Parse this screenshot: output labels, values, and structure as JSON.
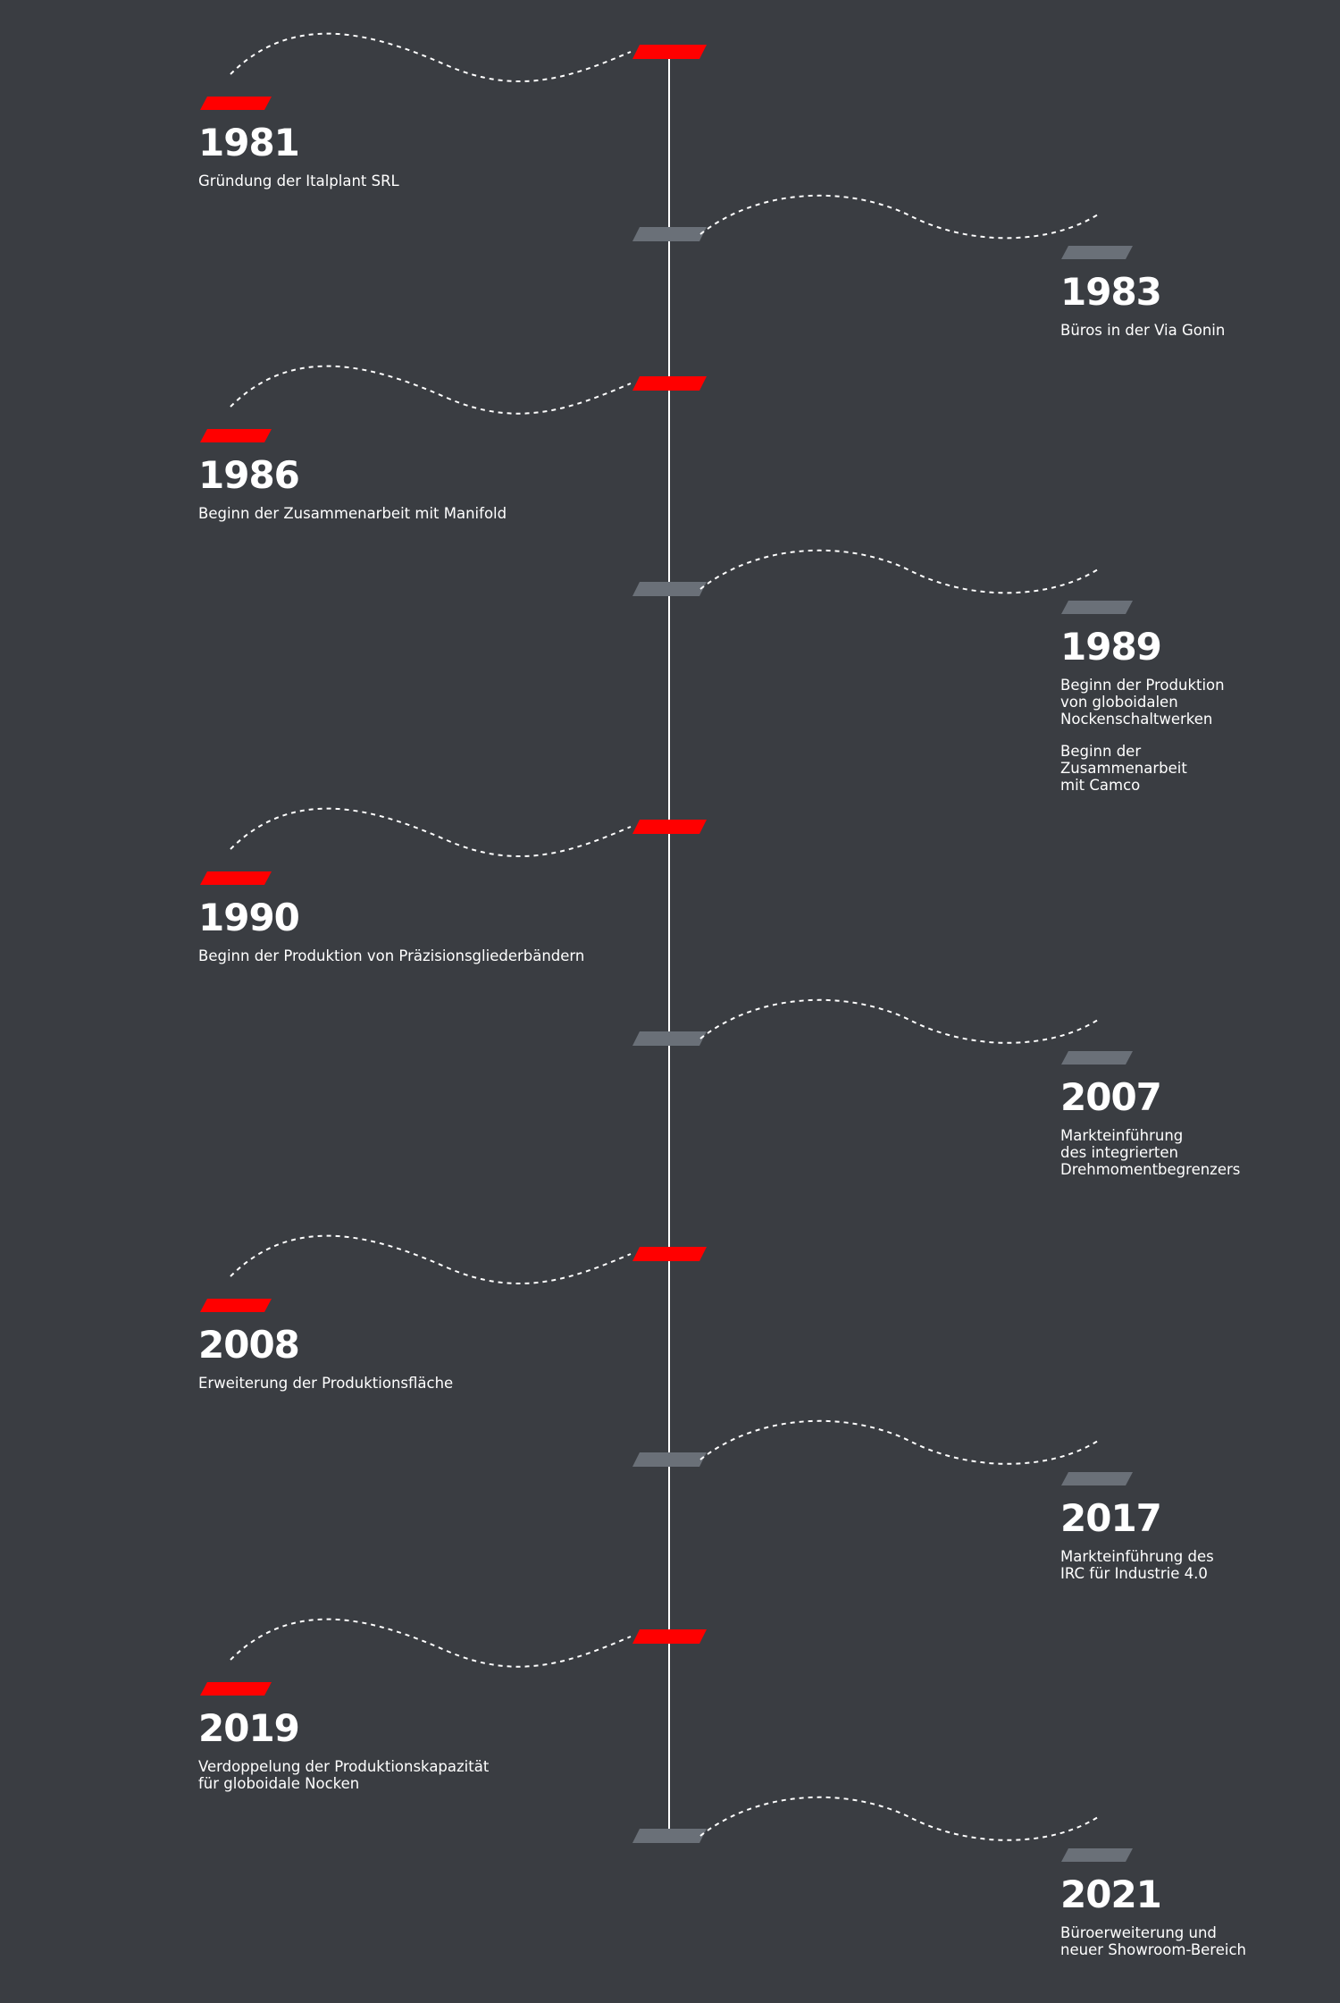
{
  "colors": {
    "background": "#3a3d42",
    "accent": "#ff0000",
    "muted_tag": "#6a7078",
    "line": "#ffffff",
    "text": "#ffffff"
  },
  "timeline": [
    {
      "year": "1981",
      "side": "left",
      "tag_color": "accent",
      "text": "Gründung der Italplant SRL"
    },
    {
      "year": "1983",
      "side": "right",
      "tag_color": "muted",
      "text": "Büros in der Via Gonin"
    },
    {
      "year": "1986",
      "side": "left",
      "tag_color": "accent",
      "text": "Beginn der Zusammenarbeit mit Manifold"
    },
    {
      "year": "1989",
      "side": "right",
      "tag_color": "muted",
      "text": "Beginn der Produktion\nvon globoidalen\nNockenschaltwerken",
      "text2": "Beginn der\nZusammenarbeit\nmit Camco"
    },
    {
      "year": "1990",
      "side": "left",
      "tag_color": "accent",
      "text": "Beginn der Produktion von Präzisionsgliederbändern"
    },
    {
      "year": "2007",
      "side": "right",
      "tag_color": "muted",
      "text": "Markteinführung\ndes integrierten\nDrehmomentbegrenzers"
    },
    {
      "year": "2008",
      "side": "left",
      "tag_color": "accent",
      "text": "Erweiterung der Produktionsfläche"
    },
    {
      "year": "2017",
      "side": "right",
      "tag_color": "muted",
      "text": "Markteinführung des\nIRC für Industrie 4.0"
    },
    {
      "year": "2019",
      "side": "left",
      "tag_color": "accent",
      "text": "Verdoppelung der Produktionskapazität\nfür globoidale Nocken"
    },
    {
      "year": "2021",
      "side": "right",
      "tag_color": "muted",
      "text": "Büroerweiterung und\nneuer Showroom-Bereich"
    }
  ]
}
